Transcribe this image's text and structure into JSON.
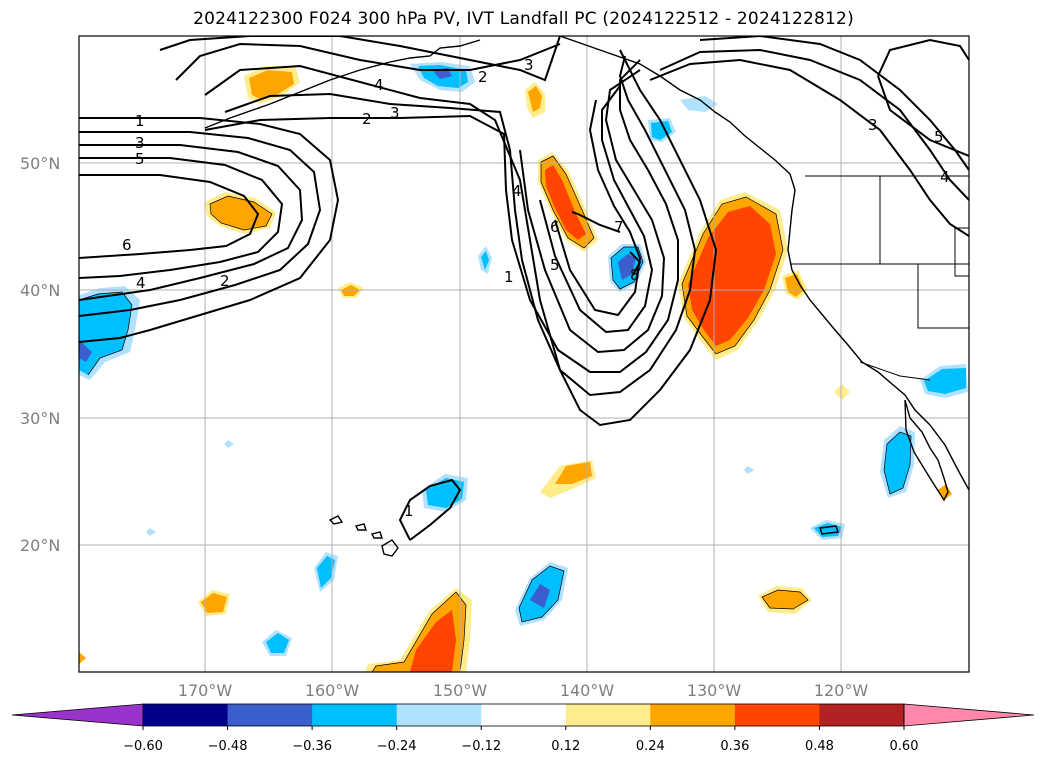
{
  "title": "2024122300 F024 300 hPa PV, IVT Landfall PC (2024122512 - 2024122812)",
  "map": {
    "lon_range": [
      -180,
      -110
    ],
    "lat_range": [
      10,
      60
    ],
    "lon_ticks": [
      "170°W",
      "160°W",
      "150°W",
      "140°W",
      "130°W",
      "120°W"
    ],
    "lat_ticks": [
      "50°N",
      "40°N",
      "30°N",
      "20°N"
    ],
    "grid": true,
    "contour_labels": [
      "1",
      "3",
      "5",
      "2",
      "3",
      "4",
      "2",
      "3",
      "6",
      "4",
      "2",
      "4",
      "1",
      "5",
      "6",
      "7",
      "8",
      "1",
      "3",
      "4",
      "5"
    ]
  },
  "colorbar": {
    "tick_labels": [
      "−0.60",
      "−0.48",
      "−0.36",
      "−0.24",
      "−0.12",
      "0.12",
      "0.24",
      "0.36",
      "0.48",
      "0.60"
    ],
    "colors": [
      "#9933cc",
      "#00008b",
      "#3a5fcd",
      "#00bfff",
      "#b0e2ff",
      "#ffffff",
      "#ffec8b",
      "#ffa500",
      "#ff4500",
      "#b22222",
      "#ff88aa"
    ],
    "extend": "both"
  }
}
